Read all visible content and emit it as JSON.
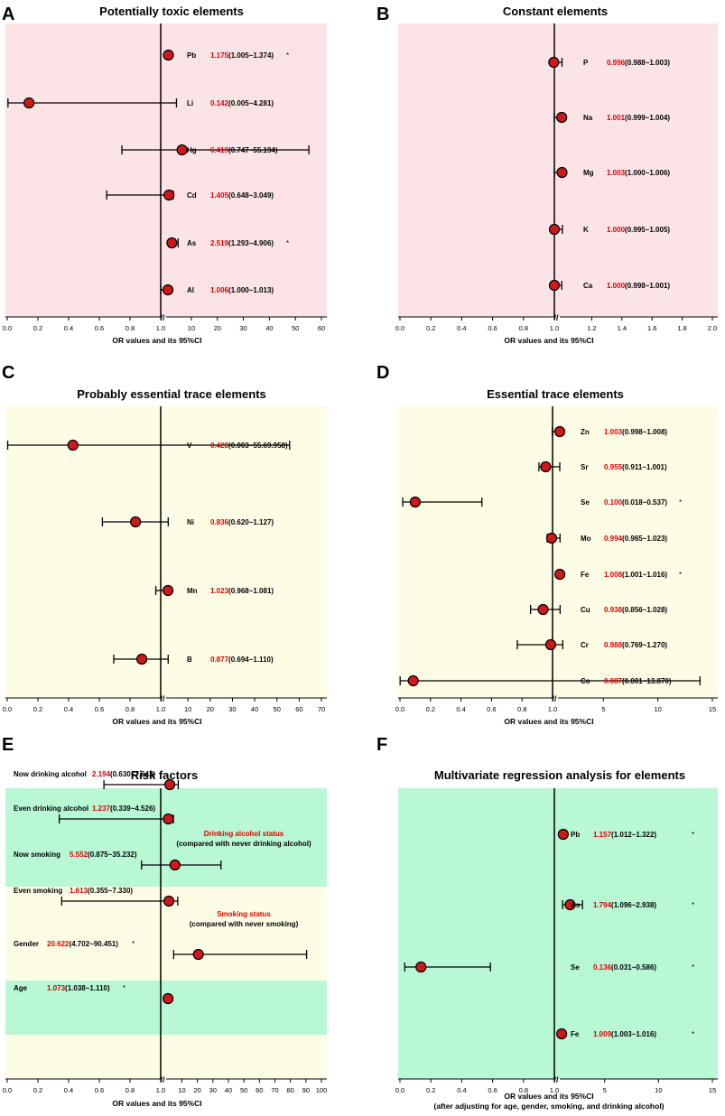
{
  "colors": {
    "pink_bg": "#FCE4E6",
    "yellow_bg": "#FDFDE6",
    "green_bg": "#B9F8D5",
    "point_fill": "#CC1A1A",
    "estimate_text": "#DD0000",
    "axis": "#000000"
  },
  "axis_break_glyph": "//",
  "chart_data": [
    {
      "panel": "A",
      "type": "forest",
      "title": "Potentially toxic elements",
      "xlabel": "OR values and its 95%CI",
      "xlabel2": "",
      "left_ticks": [
        "0.0",
        "0.2",
        "0.4",
        "0.6",
        "0.8",
        "1.0"
      ],
      "right_ticks": [
        "10",
        "20",
        "30",
        "40",
        "50",
        "60"
      ],
      "left_range": [
        0,
        1
      ],
      "right_range": [
        1,
        60
      ],
      "rows": [
        {
          "label": "Pb",
          "or": 1.175,
          "lo": 1.005,
          "hi": 1.374,
          "est": "1.175",
          "ci": "(1.005~1.374)",
          "sig": "*"
        },
        {
          "label": "Li",
          "or": 0.142,
          "lo": 0.005,
          "hi": 4.281,
          "est": "0.142",
          "ci": "(0.005~4.281)",
          "sig": ""
        },
        {
          "label": "Hg",
          "or": 6.419,
          "lo": 0.747,
          "hi": 55.194,
          "est": "6.419",
          "ci": "(0.747~55.194)",
          "sig": ""
        },
        {
          "label": "Cd",
          "or": 1.405,
          "lo": 0.648,
          "hi": 3.049,
          "est": "1.405",
          "ci": "(0.648~3.049)",
          "sig": ""
        },
        {
          "label": "As",
          "or": 2.519,
          "lo": 1.293,
          "hi": 4.906,
          "est": "2.519",
          "ci": "(1.293~4.906)",
          "sig": "*"
        },
        {
          "label": "Al",
          "or": 1.006,
          "lo": 1.0,
          "hi": 1.013,
          "est": "1.006",
          "ci": "(1.000~1.013)",
          "sig": ""
        }
      ]
    },
    {
      "panel": "B",
      "type": "forest",
      "title": "Constant elements",
      "xlabel": "OR values and its 95%CI",
      "xlabel2": "",
      "left_ticks": [
        "0.0",
        "0.2",
        "0.4",
        "0.6",
        "0.8",
        "1.0"
      ],
      "right_ticks": [
        "1.2",
        "1.4",
        "1.6",
        "1.8",
        "2.0"
      ],
      "left_range": [
        0,
        1
      ],
      "right_range": [
        1,
        2
      ],
      "rows": [
        {
          "label": "P",
          "or": 0.996,
          "lo": 0.988,
          "hi": 1.003,
          "est": "0.996",
          "ci": "(0.988~1.003)",
          "sig": ""
        },
        {
          "label": "Na",
          "or": 1.001,
          "lo": 0.999,
          "hi": 1.004,
          "est": "1.001",
          "ci": "(0.999~1.004)",
          "sig": ""
        },
        {
          "label": "Mg",
          "or": 1.003,
          "lo": 1.0,
          "hi": 1.006,
          "est": "1.003",
          "ci": "(1.000~1.006)",
          "sig": ""
        },
        {
          "label": "K",
          "or": 1.0,
          "lo": 0.995,
          "hi": 1.005,
          "est": "1.000",
          "ci": "(0.995~1.005)",
          "sig": ""
        },
        {
          "label": "Ca",
          "or": 1.0,
          "lo": 0.998,
          "hi": 1.001,
          "est": "1.000",
          "ci": "(0.998~1.001)",
          "sig": ""
        }
      ]
    },
    {
      "panel": "C",
      "type": "forest",
      "title": "Probably essential trace elements",
      "xlabel": "OR values and its 95%CI",
      "xlabel2": "",
      "left_ticks": [
        "0.0",
        "0.2",
        "0.4",
        "0.6",
        "0.8",
        "1.0"
      ],
      "right_ticks": [
        "10",
        "20",
        "30",
        "40",
        "50",
        "60",
        "70"
      ],
      "left_range": [
        0,
        1
      ],
      "right_range": [
        1,
        70
      ],
      "rows": [
        {
          "label": "V",
          "or": 0.428,
          "lo": 0.003,
          "hi": 55.69958,
          "est": "0.428",
          "ci": "(0.003~55.69.958)",
          "sig": ""
        },
        {
          "label": "Ni",
          "or": 0.836,
          "lo": 0.62,
          "hi": 1.127,
          "est": "0.836",
          "ci": "(0.620~1.127)",
          "sig": ""
        },
        {
          "label": "Mn",
          "or": 1.023,
          "lo": 0.968,
          "hi": 1.081,
          "est": "1.023",
          "ci": "(0.968~1.081)",
          "sig": ""
        },
        {
          "label": "B",
          "or": 0.877,
          "lo": 0.694,
          "hi": 1.11,
          "est": "0.877",
          "ci": "(0.694~1.110)",
          "sig": ""
        }
      ]
    },
    {
      "panel": "D",
      "type": "forest",
      "title": "Essential trace elements",
      "xlabel": "OR values and its 95%CI",
      "xlabel2": "",
      "left_ticks": [
        "0.0",
        "0.2",
        "0.4",
        "0.6",
        "0.8",
        "1.0"
      ],
      "right_ticks": [
        "5",
        "10",
        "15"
      ],
      "left_range": [
        0,
        1
      ],
      "right_range": [
        1,
        15
      ],
      "rows": [
        {
          "label": "Zn",
          "or": 1.003,
          "lo": 0.998,
          "hi": 1.008,
          "est": "1.003",
          "ci": "(0.998~1.008)",
          "sig": ""
        },
        {
          "label": "Sr",
          "or": 0.955,
          "lo": 0.911,
          "hi": 1.001,
          "est": "0.955",
          "ci": "(0.911~1.001)",
          "sig": ""
        },
        {
          "label": "Se",
          "or": 0.1,
          "lo": 0.018,
          "hi": 0.537,
          "est": "0.100",
          "ci": "(0.018~0.537)",
          "sig": "*"
        },
        {
          "label": "Mo",
          "or": 0.994,
          "lo": 0.965,
          "hi": 1.023,
          "est": "0.994",
          "ci": "(0.965~1.023)",
          "sig": ""
        },
        {
          "label": "Fe",
          "or": 1.008,
          "lo": 1.001,
          "hi": 1.016,
          "est": "1.008",
          "ci": "(1.001~1.016)",
          "sig": "*"
        },
        {
          "label": "Cu",
          "or": 0.938,
          "lo": 0.856,
          "hi": 1.028,
          "est": "0.938",
          "ci": "(0.856~1.028)",
          "sig": ""
        },
        {
          "label": "Cr",
          "or": 0.988,
          "lo": 0.769,
          "hi": 1.27,
          "est": "0.988",
          "ci": "(0.769~1.270)",
          "sig": ""
        },
        {
          "label": "Co",
          "or": 0.087,
          "lo": 0.001,
          "hi": 13.87,
          "est": "0.087",
          "ci": "(0.001~13.870)",
          "sig": ""
        }
      ]
    },
    {
      "panel": "E",
      "type": "forest",
      "title": "Risk factors",
      "xlabel": "OR values and its 95%CI",
      "xlabel2": "",
      "left_ticks": [
        "0.0",
        "0.2",
        "0.4",
        "0.6",
        "0.8",
        "1.0"
      ],
      "right_ticks": [
        "10",
        "20",
        "30",
        "40",
        "50",
        "60",
        "70",
        "80",
        "90",
        "100"
      ],
      "left_range": [
        0,
        1
      ],
      "right_range": [
        1,
        100
      ],
      "groups": [
        {
          "title": "Drinking alcohol status",
          "subtitle": "(compared with never drinking alcohol)"
        },
        {
          "title": "Smoking status",
          "subtitle": "(compared with never smoking)"
        }
      ],
      "rows": [
        {
          "label": "Now drinking alcohol",
          "or": 2.194,
          "lo": 0.63,
          "hi": 7.643,
          "est": "2.194",
          "ci": "(0.630~7.643)",
          "sig": ""
        },
        {
          "label": "Even drinking alcohol",
          "or": 1.237,
          "lo": 0.339,
          "hi": 4.526,
          "est": "1.237",
          "ci": "(0.339~4.526)",
          "sig": ""
        },
        {
          "label": "Now smoking",
          "or": 5.552,
          "lo": 0.875,
          "hi": 35.232,
          "est": "5.552",
          "ci": "(0.875~35.232)",
          "sig": ""
        },
        {
          "label": "Even smoking",
          "or": 1.613,
          "lo": 0.355,
          "hi": 7.33,
          "est": "1.613",
          "ci": "(0.355~7.330)",
          "sig": ""
        },
        {
          "label": "Gender",
          "or": 20.622,
          "lo": 4.702,
          "hi": 90.451,
          "est": "20.622",
          "ci": "(4.702~90.451)",
          "sig": "*"
        },
        {
          "label": "Age",
          "or": 1.073,
          "lo": 1.038,
          "hi": 1.11,
          "est": "1.073",
          "ci": "(1.038~1.110)",
          "sig": "*"
        }
      ]
    },
    {
      "panel": "F",
      "type": "forest",
      "title": "Multivariate regression analysis for elements",
      "xlabel": "OR values and its 95%CI",
      "xlabel2": "(after adjusting for age, gender, smoking, and drinking alcohol)",
      "left_ticks": [
        "0.0",
        "0.2",
        "0.4",
        "0.6",
        "0.8",
        "1.0"
      ],
      "right_ticks": [
        "5",
        "10",
        "15"
      ],
      "left_range": [
        0,
        1
      ],
      "right_range": [
        1,
        15
      ],
      "rows": [
        {
          "label": "Pb",
          "or": 1.157,
          "lo": 1.012,
          "hi": 1.322,
          "est": "1.157",
          "ci": "(1.012~1.322)",
          "sig": "*"
        },
        {
          "label": "As",
          "or": 1.794,
          "lo": 1.096,
          "hi": 2.938,
          "est": "1.794",
          "ci": "(1.096~2.938)",
          "sig": "*"
        },
        {
          "label": "Se",
          "or": 0.136,
          "lo": 0.031,
          "hi": 0.586,
          "est": "0.136",
          "ci": "(0.031~0.586)",
          "sig": "*"
        },
        {
          "label": "Fe",
          "or": 1.009,
          "lo": 1.003,
          "hi": 1.016,
          "est": "1.009",
          "ci": "(1.003~1.016)",
          "sig": "*"
        }
      ]
    }
  ]
}
